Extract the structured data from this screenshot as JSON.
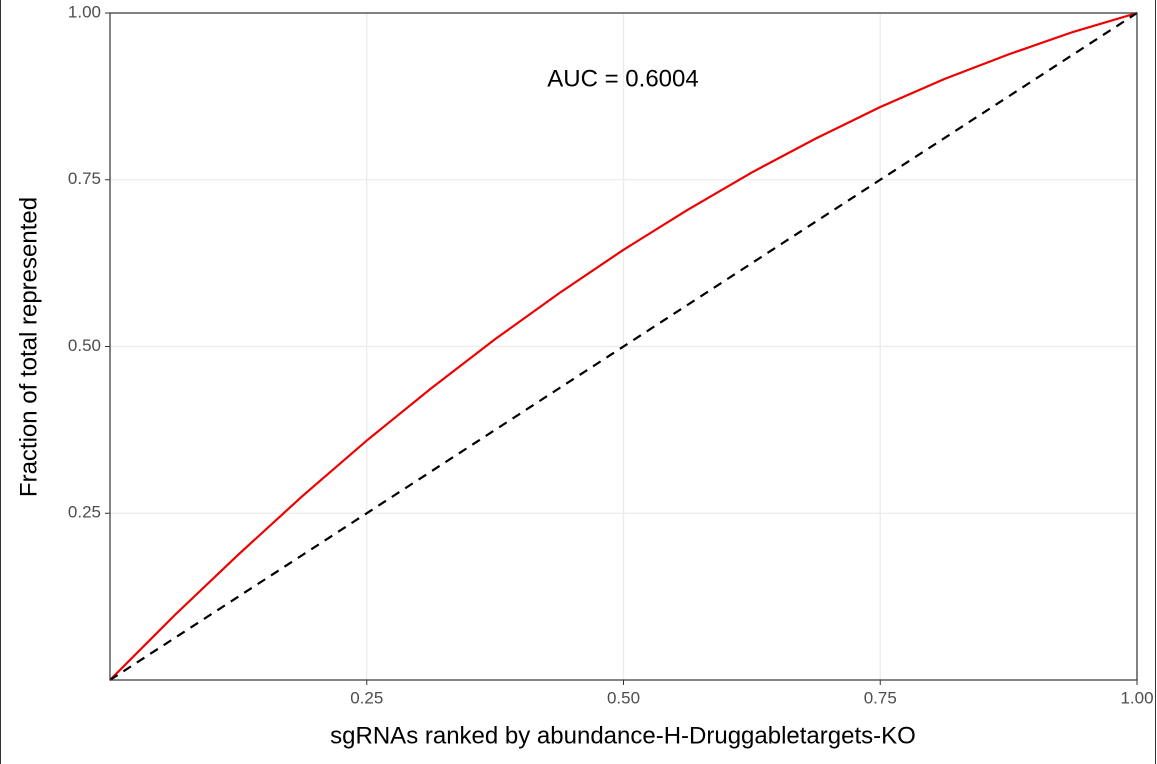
{
  "chart_data": {
    "type": "line",
    "annotation": "AUC = 0.6004",
    "xlabel": "sgRNAs ranked by abundance-H-Druggabletargets-KO",
    "ylabel": "Fraction of total represented",
    "xlim": [
      0,
      1
    ],
    "ylim": [
      0,
      1
    ],
    "xticks": [
      0.25,
      {
        "value": 0.5,
        "label": "0.50"
      },
      0.75,
      {
        "value": 1,
        "label": "1.00"
      }
    ],
    "yticks": [
      0.25,
      {
        "value": 0.5,
        "label": "0.50"
      },
      0.75,
      {
        "value": 1,
        "label": "1.00"
      }
    ],
    "grid": true,
    "series": [
      {
        "color": "#ee0000",
        "dashed": false,
        "x": [
          0,
          0.0625,
          0.125,
          0.1875,
          0.25,
          0.3125,
          0.375,
          0.4375,
          0.5,
          0.5625,
          0.625,
          0.6875,
          0.75,
          0.8125,
          0.875,
          0.9375,
          1
        ],
        "values": [
          0,
          0.0965,
          0.188,
          0.276,
          0.359,
          0.437,
          0.511,
          0.58,
          0.645,
          0.705,
          0.761,
          0.812,
          0.859,
          0.901,
          0.938,
          0.9715,
          1
        ]
      },
      {
        "color": "#000000",
        "dashed": true,
        "x": [
          0,
          1
        ],
        "values": [
          0,
          1
        ]
      }
    ]
  }
}
